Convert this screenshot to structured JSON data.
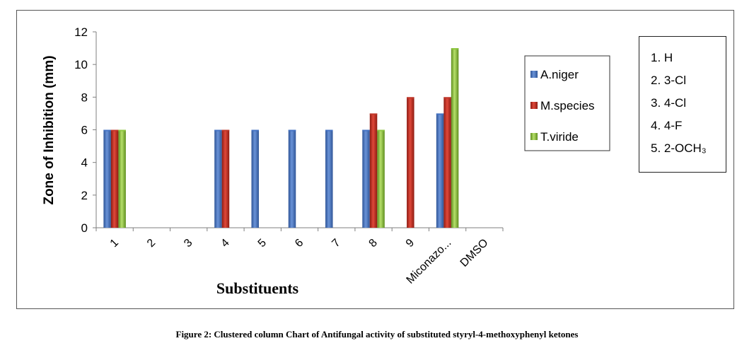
{
  "caption": "Figure 2: Clustered column Chart of Antifungal activity of substituted styryl-4-methoxyphenyl ketones",
  "substituent_key": {
    "items": [
      "1. H",
      "2.  3-Cl",
      "3.  4-Cl",
      "4.  4-F",
      "5. 2-OCH₃"
    ]
  },
  "chart_data": {
    "type": "bar",
    "xlabel": "Substituents",
    "ylabel": "Zone of Inhibition (mm)",
    "ylim": [
      0,
      12
    ],
    "yticks": [
      0,
      2,
      4,
      6,
      8,
      10,
      12
    ],
    "grid": false,
    "legend_position": "right",
    "categories": [
      "1",
      "2",
      "3",
      "4",
      "5",
      "6",
      "7",
      "8",
      "9",
      "Miconazo...",
      "DMSO"
    ],
    "series": [
      {
        "name": "A.niger",
        "color": "#4472C4",
        "values": [
          6,
          0,
          0,
          6,
          6,
          6,
          6,
          6,
          0,
          7,
          0
        ]
      },
      {
        "name": "M.species",
        "color": "#C0392B",
        "values": [
          6,
          0,
          0,
          6,
          0,
          0,
          0,
          7,
          8,
          8,
          0
        ]
      },
      {
        "name": "T.viride",
        "color": "#8DC63F",
        "values": [
          6,
          0,
          0,
          0,
          0,
          0,
          0,
          6,
          0,
          11,
          0
        ]
      }
    ]
  }
}
